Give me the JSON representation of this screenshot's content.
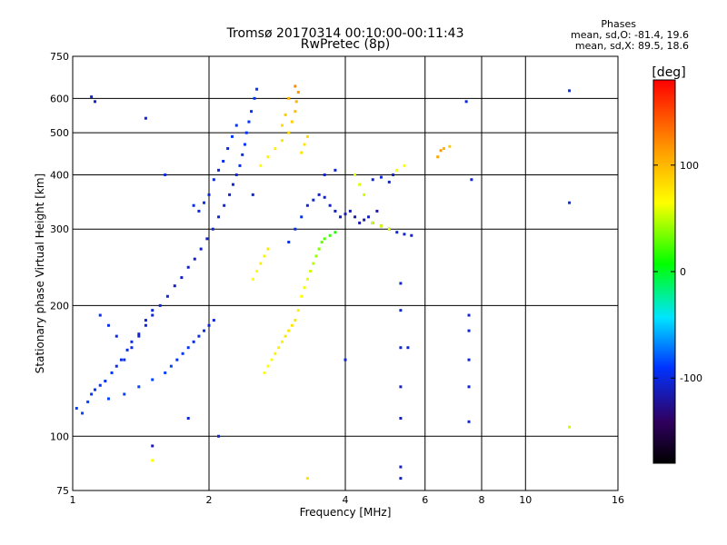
{
  "chart_data": {
    "type": "scatter",
    "title": "Tromsø 20170314 00:10:00-00:11:43",
    "subtitle": "RwPretec (8p)",
    "xlabel": "Frequency [MHz]",
    "ylabel": "Stationary phase Virtual Height [km]",
    "x_scale": "log",
    "y_scale": "log",
    "xlim": [
      1,
      16
    ],
    "ylim": [
      75,
      750
    ],
    "xticks": [
      1,
      2,
      4,
      6,
      8,
      10,
      16
    ],
    "yticks": [
      75,
      100,
      200,
      300,
      400,
      500,
      600,
      750
    ],
    "grid": true,
    "phases_box": {
      "title": "Phases",
      "line1": "mean, sd,O: -81.4, 19.6",
      "line2": "mean, sd,X:  89.5, 18.6"
    },
    "colorbar": {
      "label": "[deg]",
      "range": [
        -180,
        180
      ],
      "ticks": [
        100,
        0,
        -100
      ]
    },
    "series": [
      {
        "points": [
          [
            1.02,
            116,
            -95
          ],
          [
            1.05,
            113,
            -95
          ],
          [
            1.08,
            120,
            -95
          ],
          [
            1.1,
            125,
            -100
          ],
          [
            1.12,
            128,
            -100
          ],
          [
            1.15,
            131,
            -100
          ],
          [
            1.18,
            134,
            -100
          ],
          [
            1.22,
            140,
            -100
          ],
          [
            1.25,
            145,
            -105
          ],
          [
            1.28,
            150,
            -105
          ],
          [
            1.32,
            158,
            -105
          ],
          [
            1.35,
            165,
            -105
          ],
          [
            1.4,
            172,
            -110
          ],
          [
            1.45,
            180,
            -110
          ],
          [
            1.5,
            190,
            -110
          ],
          [
            1.56,
            200,
            -110
          ],
          [
            1.62,
            210,
            -110
          ],
          [
            1.68,
            222,
            -115
          ],
          [
            1.74,
            232,
            -115
          ],
          [
            1.8,
            245,
            -115
          ],
          [
            1.86,
            256,
            -115
          ],
          [
            1.92,
            270,
            -115
          ],
          [
            1.98,
            285,
            -115
          ],
          [
            2.04,
            300,
            -110
          ],
          [
            2.1,
            320,
            -110
          ],
          [
            2.16,
            340,
            -110
          ],
          [
            2.22,
            360,
            -110
          ],
          [
            2.26,
            380,
            -110
          ],
          [
            2.3,
            400,
            -105
          ],
          [
            2.34,
            420,
            -105
          ],
          [
            2.37,
            445,
            -105
          ],
          [
            2.4,
            470,
            -100
          ],
          [
            2.42,
            500,
            -100
          ],
          [
            2.45,
            530,
            -100
          ],
          [
            2.48,
            560,
            -100
          ],
          [
            2.52,
            600,
            -100
          ],
          [
            2.55,
            630,
            -100
          ],
          [
            1.9,
            330,
            -105
          ],
          [
            1.95,
            345,
            -105
          ],
          [
            2.0,
            360,
            -110
          ],
          [
            1.85,
            340,
            -105
          ],
          [
            2.05,
            390,
            -110
          ],
          [
            2.1,
            410,
            -110
          ],
          [
            2.15,
            430,
            -105
          ],
          [
            2.2,
            460,
            -105
          ],
          [
            2.25,
            490,
            -100
          ],
          [
            2.3,
            520,
            -100
          ],
          [
            1.7,
            150,
            -100
          ],
          [
            1.75,
            155,
            -100
          ],
          [
            1.8,
            160,
            -100
          ],
          [
            1.85,
            165,
            -105
          ],
          [
            1.9,
            170,
            -105
          ],
          [
            1.95,
            175,
            -105
          ],
          [
            2.0,
            180,
            -110
          ],
          [
            2.05,
            185,
            -110
          ],
          [
            1.6,
            140,
            -95
          ],
          [
            1.65,
            145,
            -95
          ],
          [
            1.5,
            135,
            -95
          ],
          [
            1.4,
            130,
            -95
          ],
          [
            1.3,
            125,
            -95
          ],
          [
            1.2,
            122,
            -95
          ],
          [
            1.3,
            150,
            -105
          ],
          [
            1.35,
            160,
            -105
          ],
          [
            1.4,
            170,
            -110
          ],
          [
            1.45,
            185,
            -110
          ],
          [
            1.5,
            195,
            -110
          ],
          [
            1.25,
            170,
            -105
          ],
          [
            1.2,
            180,
            -105
          ],
          [
            1.15,
            190,
            -105
          ]
        ]
      },
      {
        "points": [
          [
            3.3,
            340,
            -110
          ],
          [
            3.4,
            350,
            -110
          ],
          [
            3.5,
            360,
            -115
          ],
          [
            3.6,
            355,
            -115
          ],
          [
            3.7,
            340,
            -115
          ],
          [
            3.8,
            330,
            -115
          ],
          [
            3.9,
            320,
            -115
          ],
          [
            4.0,
            325,
            -120
          ],
          [
            4.1,
            330,
            -120
          ],
          [
            4.2,
            320,
            -120
          ],
          [
            4.3,
            310,
            -120
          ],
          [
            4.4,
            315,
            -120
          ],
          [
            4.5,
            320,
            -115
          ],
          [
            4.6,
            310,
            -115
          ],
          [
            4.8,
            305,
            -115
          ],
          [
            5.0,
            300,
            -110
          ],
          [
            5.2,
            295,
            -110
          ],
          [
            5.4,
            292,
            -110
          ],
          [
            5.6,
            290,
            -110
          ],
          [
            3.2,
            320,
            -105
          ],
          [
            3.1,
            300,
            -105
          ],
          [
            3.0,
            280,
            -105
          ],
          [
            3.6,
            400,
            -110
          ],
          [
            3.8,
            410,
            -110
          ],
          [
            4.6,
            390,
            -110
          ],
          [
            4.8,
            395,
            -110
          ],
          [
            5.0,
            385,
            -110
          ],
          [
            4.7,
            330,
            -120
          ],
          [
            5.1,
            400,
            -110
          ]
        ]
      },
      {
        "points": [
          [
            2.65,
            140,
            100
          ],
          [
            2.7,
            145,
            100
          ],
          [
            2.75,
            150,
            100
          ],
          [
            2.8,
            155,
            105
          ],
          [
            2.85,
            160,
            105
          ],
          [
            2.9,
            165,
            105
          ],
          [
            2.95,
            170,
            110
          ],
          [
            3.0,
            175,
            110
          ],
          [
            3.05,
            180,
            110
          ],
          [
            3.1,
            185,
            110
          ],
          [
            3.15,
            195,
            105
          ],
          [
            3.2,
            210,
            100
          ],
          [
            3.25,
            220,
            95
          ],
          [
            3.3,
            230,
            90
          ],
          [
            3.35,
            240,
            80
          ],
          [
            3.4,
            250,
            70
          ],
          [
            3.45,
            260,
            60
          ],
          [
            3.5,
            270,
            50
          ],
          [
            3.55,
            280,
            40
          ],
          [
            3.6,
            285,
            30
          ],
          [
            3.7,
            290,
            20
          ],
          [
            3.8,
            295,
            10
          ],
          [
            2.6,
            420,
            100
          ],
          [
            2.7,
            440,
            105
          ],
          [
            2.8,
            460,
            105
          ],
          [
            2.9,
            480,
            110
          ],
          [
            3.0,
            500,
            115
          ],
          [
            3.05,
            530,
            120
          ],
          [
            3.1,
            560,
            125
          ],
          [
            3.12,
            590,
            130
          ],
          [
            3.15,
            620,
            140
          ],
          [
            3.1,
            640,
            145
          ],
          [
            3.0,
            600,
            130
          ],
          [
            2.95,
            550,
            120
          ],
          [
            2.9,
            520,
            115
          ],
          [
            3.2,
            450,
            110
          ],
          [
            3.25,
            470,
            110
          ],
          [
            3.3,
            490,
            115
          ],
          [
            2.5,
            230,
            100
          ],
          [
            2.55,
            240,
            100
          ],
          [
            2.6,
            250,
            105
          ],
          [
            2.65,
            260,
            105
          ],
          [
            2.7,
            270,
            110
          ],
          [
            4.2,
            400,
            90
          ],
          [
            4.3,
            380,
            85
          ],
          [
            4.4,
            360,
            80
          ],
          [
            4.6,
            310,
            80
          ],
          [
            4.8,
            305,
            85
          ],
          [
            5.0,
            300,
            90
          ],
          [
            5.2,
            410,
            95
          ],
          [
            5.4,
            420,
            100
          ],
          [
            6.4,
            440,
            135
          ],
          [
            6.5,
            455,
            140
          ],
          [
            6.6,
            460,
            130
          ],
          [
            6.8,
            465,
            120
          ]
        ]
      },
      {
        "points": [
          [
            1.1,
            605,
            -110
          ],
          [
            1.12,
            590,
            -110
          ],
          [
            1.45,
            540,
            -110
          ],
          [
            1.6,
            400,
            -105
          ],
          [
            1.8,
            110,
            -110
          ],
          [
            1.5,
            95,
            -120
          ],
          [
            2.1,
            100,
            -110
          ],
          [
            2.5,
            360,
            -110
          ],
          [
            5.3,
            225,
            -110
          ],
          [
            5.3,
            195,
            -110
          ],
          [
            5.3,
            160,
            -110
          ],
          [
            5.3,
            130,
            -115
          ],
          [
            5.3,
            110,
            -115
          ],
          [
            5.3,
            85,
            -115
          ],
          [
            5.3,
            80,
            -115
          ],
          [
            7.5,
            190,
            -110
          ],
          [
            7.5,
            175,
            -110
          ],
          [
            7.5,
            150,
            -110
          ],
          [
            7.5,
            130,
            -110
          ],
          [
            7.5,
            108,
            -110
          ],
          [
            7.4,
            590,
            -110
          ],
          [
            7.6,
            390,
            -110
          ],
          [
            12.5,
            625,
            -105
          ],
          [
            12.5,
            345,
            -105
          ],
          [
            12.5,
            105,
            80
          ],
          [
            1.5,
            88,
            100
          ],
          [
            3.3,
            80,
            110
          ],
          [
            4.0,
            150,
            -110
          ],
          [
            5.5,
            160,
            -110
          ]
        ]
      }
    ]
  }
}
